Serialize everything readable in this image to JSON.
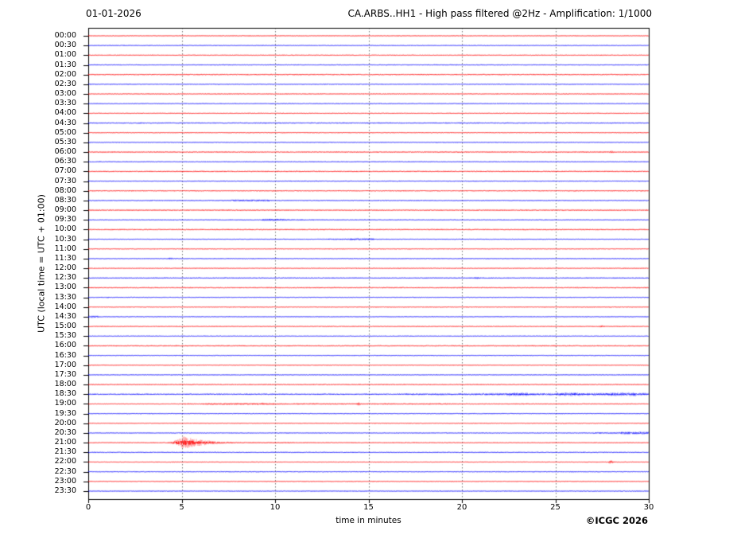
{
  "header": {
    "date": "01-01-2026",
    "title": "CA.ARBS..HH1 - High pass filtered @2Hz - Amplification: 1/1000"
  },
  "axes": {
    "x_label": "time in minutes",
    "y_label": "UTC (local time = UTC + 01:00)",
    "x_ticks": [
      0,
      5,
      10,
      15,
      20,
      25,
      30
    ],
    "x_gridlines": [
      5,
      10,
      15,
      20,
      25
    ],
    "x_min": 0,
    "x_max": 30
  },
  "footer": {
    "copyright": "©ICGC 2026"
  },
  "colors": {
    "trace_even": "#ff0000",
    "trace_odd": "#0000ff",
    "grid": "#666666",
    "border": "#000000",
    "background": "#ffffff"
  },
  "chart_data": {
    "type": "helicorder",
    "station": "CA.ARBS..HH1",
    "date": "01-01-2026",
    "filter": "High pass filtered @2Hz",
    "amplification": "1/1000",
    "minutes_per_row": 30,
    "rows": [
      {
        "time": "00:00",
        "color": "red",
        "base": 0.55,
        "events": []
      },
      {
        "time": "00:30",
        "color": "blue",
        "base": 0.55,
        "events": []
      },
      {
        "time": "01:00",
        "color": "red",
        "base": 0.65,
        "events": []
      },
      {
        "time": "01:30",
        "color": "blue",
        "base": 0.7,
        "events": []
      },
      {
        "time": "02:00",
        "color": "red",
        "base": 0.85,
        "events": []
      },
      {
        "time": "02:30",
        "color": "blue",
        "base": 0.6,
        "events": []
      },
      {
        "time": "03:00",
        "color": "red",
        "base": 0.6,
        "events": []
      },
      {
        "time": "03:30",
        "color": "blue",
        "base": 0.6,
        "events": []
      },
      {
        "time": "04:00",
        "color": "red",
        "base": 0.6,
        "events": []
      },
      {
        "time": "04:30",
        "color": "blue",
        "base": 0.85,
        "events": []
      },
      {
        "time": "05:00",
        "color": "red",
        "base": 0.6,
        "events": []
      },
      {
        "time": "05:30",
        "color": "blue",
        "base": 0.55,
        "events": []
      },
      {
        "time": "06:00",
        "color": "red",
        "base": 0.8,
        "events": [
          {
            "type": "spike",
            "start": 27.85,
            "end": 28.2,
            "amp": 1.8
          }
        ]
      },
      {
        "time": "06:30",
        "color": "blue",
        "base": 0.6,
        "events": []
      },
      {
        "time": "07:00",
        "color": "red",
        "base": 0.85,
        "events": []
      },
      {
        "time": "07:30",
        "color": "blue",
        "base": 0.7,
        "events": []
      },
      {
        "time": "08:00",
        "color": "red",
        "base": 0.75,
        "events": []
      },
      {
        "time": "08:30",
        "color": "blue",
        "base": 0.6,
        "events": [
          {
            "type": "noise",
            "start": 7.6,
            "end": 9.7,
            "amp": 1.3
          }
        ]
      },
      {
        "time": "09:00",
        "color": "red",
        "base": 0.8,
        "events": []
      },
      {
        "time": "09:30",
        "color": "blue",
        "base": 0.6,
        "events": [
          {
            "type": "noise",
            "start": 9.3,
            "end": 10.5,
            "amp": 1.6
          },
          {
            "type": "noise",
            "start": 10.5,
            "end": 11.6,
            "amp": 1.0
          }
        ]
      },
      {
        "time": "10:00",
        "color": "red",
        "base": 0.85,
        "events": []
      },
      {
        "time": "10:30",
        "color": "blue",
        "base": 0.6,
        "events": [
          {
            "type": "noise",
            "start": 12.8,
            "end": 14.0,
            "amp": 1.0
          },
          {
            "type": "noise",
            "start": 14.0,
            "end": 15.3,
            "amp": 1.5
          }
        ]
      },
      {
        "time": "11:00",
        "color": "red",
        "base": 0.6,
        "events": []
      },
      {
        "time": "11:30",
        "color": "blue",
        "base": 0.55,
        "events": [
          {
            "type": "spike",
            "start": 4.2,
            "end": 4.6,
            "amp": 1.6
          }
        ]
      },
      {
        "time": "12:00",
        "color": "red",
        "base": 0.6,
        "events": []
      },
      {
        "time": "12:30",
        "color": "blue",
        "base": 0.75,
        "events": [
          {
            "type": "spike",
            "start": 20.55,
            "end": 21.05,
            "amp": 1.5
          }
        ]
      },
      {
        "time": "13:00",
        "color": "red",
        "base": 0.85,
        "events": []
      },
      {
        "time": "13:30",
        "color": "blue",
        "base": 0.6,
        "events": [
          {
            "type": "spike",
            "start": 0.9,
            "end": 1.2,
            "amp": 1.0
          }
        ]
      },
      {
        "time": "14:00",
        "color": "red",
        "base": 0.6,
        "events": []
      },
      {
        "time": "14:30",
        "color": "blue",
        "base": 0.55,
        "events": [
          {
            "type": "noise",
            "start": 0,
            "end": 0.55,
            "amp": 1.5
          }
        ]
      },
      {
        "time": "15:00",
        "color": "red",
        "base": 0.6,
        "events": [
          {
            "type": "spike",
            "start": 27.25,
            "end": 27.7,
            "amp": 1.5
          }
        ]
      },
      {
        "time": "15:30",
        "color": "blue",
        "base": 0.55,
        "events": []
      },
      {
        "time": "16:00",
        "color": "red",
        "base": 0.85,
        "events": []
      },
      {
        "time": "16:30",
        "color": "blue",
        "base": 0.6,
        "events": []
      },
      {
        "time": "17:00",
        "color": "red",
        "base": 0.55,
        "events": []
      },
      {
        "time": "17:30",
        "color": "blue",
        "base": 0.6,
        "events": []
      },
      {
        "time": "18:00",
        "color": "red",
        "base": 0.7,
        "events": []
      },
      {
        "time": "18:30",
        "color": "blue",
        "base": 0.9,
        "events": [
          {
            "type": "noise",
            "start": 0,
            "end": 17,
            "amp": 0.95
          },
          {
            "type": "noise",
            "start": 17,
            "end": 21,
            "amp": 1.3
          },
          {
            "type": "noise",
            "start": 21,
            "end": 22.4,
            "amp": 1.6
          },
          {
            "type": "noise",
            "start": 22.4,
            "end": 23.5,
            "amp": 2.3
          },
          {
            "type": "noise",
            "start": 23.5,
            "end": 25.1,
            "amp": 1.6
          },
          {
            "type": "noise",
            "start": 25.1,
            "end": 26.3,
            "amp": 2.4
          },
          {
            "type": "noise",
            "start": 26.3,
            "end": 27.7,
            "amp": 1.8
          },
          {
            "type": "noise",
            "start": 27.7,
            "end": 29.3,
            "amp": 2.5
          },
          {
            "type": "noise",
            "start": 29.3,
            "end": 30,
            "amp": 1.9
          }
        ]
      },
      {
        "time": "19:00",
        "color": "red",
        "base": 0.55,
        "events": [
          {
            "type": "noise",
            "start": 5,
            "end": 6.3,
            "amp": 0.9
          },
          {
            "type": "noise",
            "start": 6.3,
            "end": 10,
            "amp": 1.4
          },
          {
            "type": "spike",
            "start": 9.2,
            "end": 9.45,
            "amp": 2.0
          },
          {
            "type": "noise",
            "start": 10,
            "end": 19.3,
            "amp": 1.0
          },
          {
            "type": "spike",
            "start": 14.35,
            "end": 14.6,
            "amp": 2.5
          },
          {
            "type": "noise",
            "start": 19.3,
            "end": 30,
            "amp": 0.75
          }
        ]
      },
      {
        "time": "19:30",
        "color": "blue",
        "base": 0.6,
        "events": []
      },
      {
        "time": "20:00",
        "color": "red",
        "base": 0.55,
        "events": []
      },
      {
        "time": "20:30",
        "color": "blue",
        "base": 0.6,
        "events": [
          {
            "type": "noise",
            "start": 27,
            "end": 28.5,
            "amp": 1.2
          },
          {
            "type": "noise",
            "start": 28.5,
            "end": 30,
            "amp": 1.9
          }
        ]
      },
      {
        "time": "21:00",
        "color": "red",
        "base": 0.6,
        "events": [
          {
            "type": "burst",
            "start": 4.1,
            "peak": 5.1,
            "end": 8.2,
            "amp": 8
          },
          {
            "type": "noise",
            "start": 8.2,
            "end": 11,
            "amp": 0.9
          }
        ]
      },
      {
        "time": "21:30",
        "color": "blue",
        "base": 0.7,
        "events": []
      },
      {
        "time": "22:00",
        "color": "red",
        "base": 0.6,
        "events": [
          {
            "type": "burst",
            "start": 27.75,
            "peak": 27.95,
            "end": 28.3,
            "amp": 3.5
          }
        ]
      },
      {
        "time": "22:30",
        "color": "blue",
        "base": 0.7,
        "events": []
      },
      {
        "time": "23:00",
        "color": "red",
        "base": 0.55,
        "events": []
      },
      {
        "time": "23:30",
        "color": "blue",
        "base": 0.6,
        "events": []
      }
    ]
  }
}
